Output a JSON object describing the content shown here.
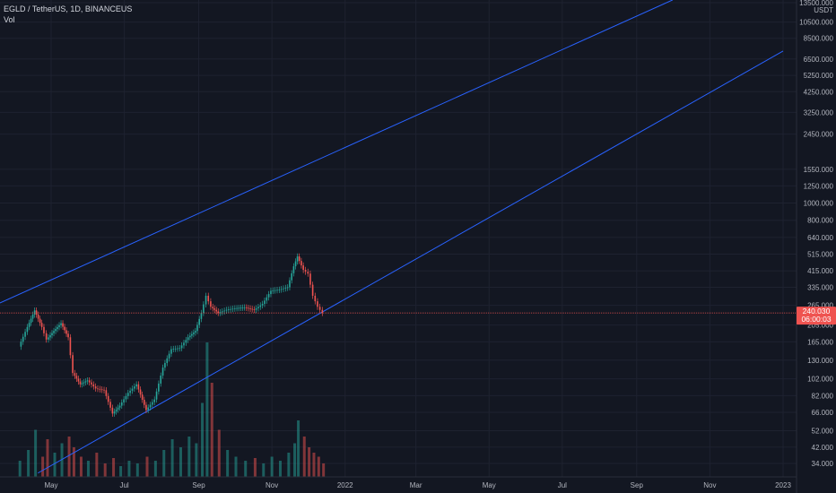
{
  "legend": {
    "symbol_line": "EGLD / TetherUS, 1D, BINANCEUS",
    "volume_label": "Vol"
  },
  "colors": {
    "background": "#131722",
    "grid": "#1e2230",
    "up": "#26a69a",
    "down": "#ef5350",
    "channel": "#2962ff",
    "axis_text": "#b2b5be",
    "price_badge": "#ef5350"
  },
  "price_badge": {
    "price": "240.030",
    "countdown": "06:00:03"
  },
  "chart_data": {
    "type": "candlestick",
    "title": "",
    "scale": "log",
    "currency_label": "USDT",
    "y_axis": {
      "ticks": [
        13500,
        10500,
        8500,
        6500,
        5250,
        4250,
        3250,
        2450,
        1550,
        1250,
        1000,
        800,
        640,
        515,
        415,
        335,
        265,
        205,
        165,
        130,
        102,
        82,
        66,
        52,
        42,
        34
      ],
      "tick_labels": [
        "13500.000",
        "10500.000",
        "8500.000",
        "6500.000",
        "5250.000",
        "4250.000",
        "3250.000",
        "2450.000",
        "1550.000",
        "1250.000",
        "1000.000",
        "800.000",
        "640.000",
        "515.000",
        "415.000",
        "335.000",
        "265.000",
        "205.000",
        "165.000",
        "130.000",
        "102.000",
        "82.000",
        "66.000",
        "52.000",
        "42.000",
        "34.000"
      ]
    },
    "x_axis": {
      "ticks": [
        "2021-05-01",
        "2021-07-01",
        "2021-09-01",
        "2021-11-01",
        "2022-01-01",
        "2022-03-01",
        "2022-05-01",
        "2022-07-01",
        "2022-09-01",
        "2022-11-01",
        "2023-01-01"
      ],
      "tick_labels": [
        "May",
        "Jul",
        "Sep",
        "Nov",
        "2022",
        "Mar",
        "May",
        "Jul",
        "Sep",
        "Nov",
        "2023"
      ]
    },
    "price_series": [
      {
        "date": "2021-04-05",
        "close": 155
      },
      {
        "date": "2021-04-12",
        "close": 200
      },
      {
        "date": "2021-04-18",
        "close": 248
      },
      {
        "date": "2021-04-24",
        "close": 200
      },
      {
        "date": "2021-04-28",
        "close": 170
      },
      {
        "date": "2021-05-04",
        "close": 190
      },
      {
        "date": "2021-05-10",
        "close": 210
      },
      {
        "date": "2021-05-16",
        "close": 175
      },
      {
        "date": "2021-05-20",
        "close": 110
      },
      {
        "date": "2021-05-26",
        "close": 95
      },
      {
        "date": "2021-06-01",
        "close": 100
      },
      {
        "date": "2021-06-08",
        "close": 90
      },
      {
        "date": "2021-06-15",
        "close": 88
      },
      {
        "date": "2021-06-22",
        "close": 65
      },
      {
        "date": "2021-06-28",
        "close": 72
      },
      {
        "date": "2021-07-05",
        "close": 85
      },
      {
        "date": "2021-07-12",
        "close": 95
      },
      {
        "date": "2021-07-20",
        "close": 68
      },
      {
        "date": "2021-07-27",
        "close": 78
      },
      {
        "date": "2021-08-03",
        "close": 118
      },
      {
        "date": "2021-08-10",
        "close": 150
      },
      {
        "date": "2021-08-17",
        "close": 152
      },
      {
        "date": "2021-08-24",
        "close": 175
      },
      {
        "date": "2021-08-30",
        "close": 190
      },
      {
        "date": "2021-09-04",
        "close": 240
      },
      {
        "date": "2021-09-08",
        "close": 300
      },
      {
        "date": "2021-09-12",
        "close": 260
      },
      {
        "date": "2021-09-18",
        "close": 240
      },
      {
        "date": "2021-09-25",
        "close": 250
      },
      {
        "date": "2021-10-02",
        "close": 255
      },
      {
        "date": "2021-10-10",
        "close": 258
      },
      {
        "date": "2021-10-18",
        "close": 250
      },
      {
        "date": "2021-10-25",
        "close": 270
      },
      {
        "date": "2021-11-01",
        "close": 320
      },
      {
        "date": "2021-11-08",
        "close": 325
      },
      {
        "date": "2021-11-15",
        "close": 335
      },
      {
        "date": "2021-11-20",
        "close": 440
      },
      {
        "date": "2021-11-23",
        "close": 500
      },
      {
        "date": "2021-11-28",
        "close": 420
      },
      {
        "date": "2021-12-02",
        "close": 400
      },
      {
        "date": "2021-12-06",
        "close": 300
      },
      {
        "date": "2021-12-10",
        "close": 260
      },
      {
        "date": "2021-12-14",
        "close": 240
      }
    ],
    "channel_lines": [
      {
        "name": "",
        "points": [
          {
            "date": "2021-03-15",
            "price": 265
          },
          {
            "date": "2022-10-01",
            "price": 14000
          }
        ]
      },
      {
        "name": "",
        "points": [
          {
            "date": "2021-04-20",
            "price": 30
          },
          {
            "date": "2023-01-01",
            "price": 7200
          }
        ]
      }
    ],
    "volume": {
      "label": "Vol",
      "relative": [
        0.12,
        0.2,
        0.35,
        0.15,
        0.28,
        0.18,
        0.25,
        0.3,
        0.22,
        0.15,
        0.12,
        0.18,
        0.1,
        0.14,
        0.08,
        0.12,
        0.1,
        0.15,
        0.12,
        0.2,
        0.28,
        0.22,
        0.3,
        0.25,
        0.55,
        1.0,
        0.7,
        0.35,
        0.2,
        0.15,
        0.12,
        0.14,
        0.1,
        0.15,
        0.12,
        0.18,
        0.25,
        0.42,
        0.3,
        0.22,
        0.18,
        0.15,
        0.1
      ]
    }
  }
}
